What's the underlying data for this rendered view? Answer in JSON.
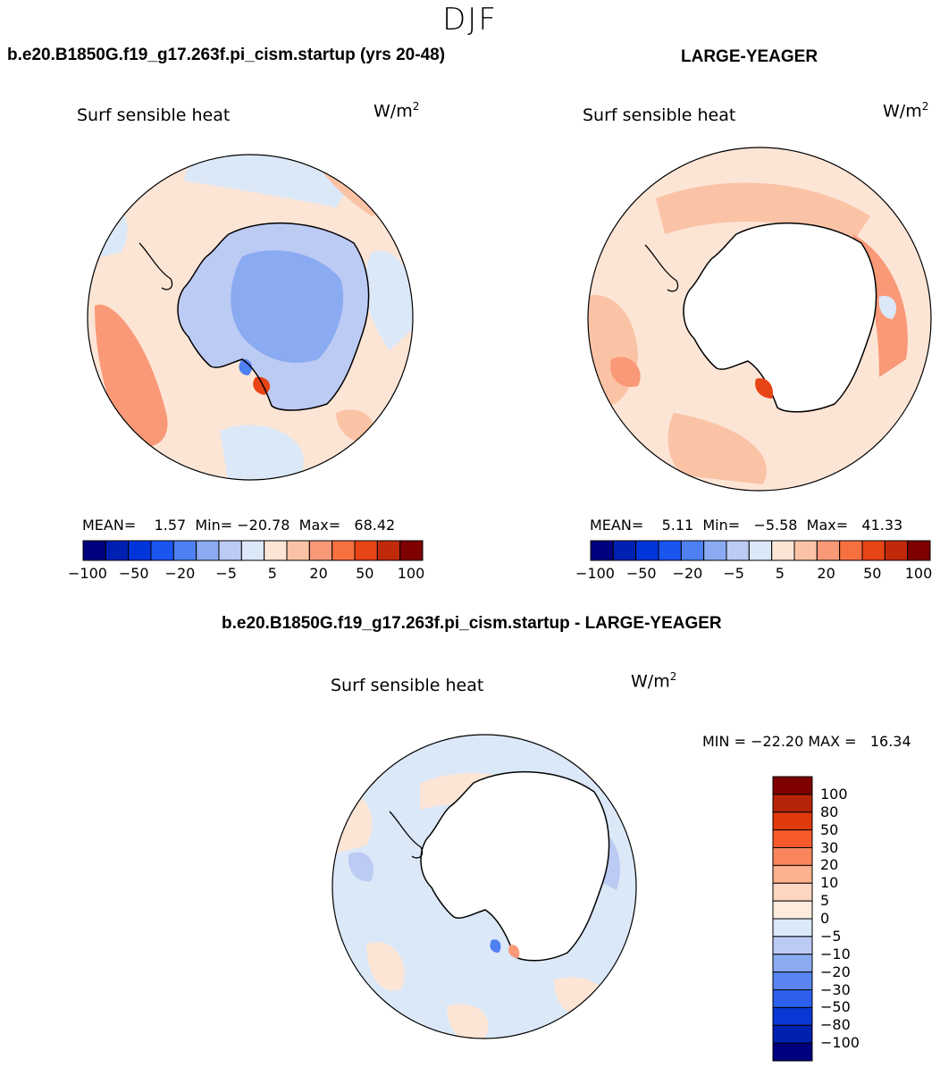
{
  "figure": {
    "season": "DJF",
    "panels": [
      {
        "title": "b.e20.B1850G.f19_g17.263f.pi_cism.startup (yrs 20-48)",
        "variable": "Surf sensible heat",
        "units": "W/m",
        "units_sup": "2",
        "stats": {
          "mean_label": "MEAN=",
          "mean": "1.57",
          "min_label": "Min=",
          "min": "−20.78",
          "max_label": "Max=",
          "max": "68.42"
        },
        "colorbar_ticks": [
          "−100",
          "−50",
          "−20",
          "−5",
          "5",
          "20",
          "50",
          "100"
        ]
      },
      {
        "title": "LARGE-YEAGER",
        "variable": "Surf sensible heat",
        "units": "W/m",
        "units_sup": "2",
        "stats": {
          "mean_label": "MEAN=",
          "mean": "5.11",
          "min_label": "Min=",
          "min": "−5.58",
          "max_label": "Max=",
          "max": "41.33"
        },
        "colorbar_ticks": [
          "−100",
          "−50",
          "−20",
          "−5",
          "5",
          "20",
          "50",
          "100"
        ]
      },
      {
        "title": "b.e20.B1850G.f19_g17.263f.pi_cism.startup - LARGE-YEAGER",
        "variable": "Surf sensible heat",
        "units": "W/m",
        "units_sup": "2",
        "stats_text": "MIN = −22.20 MAX =   16.34",
        "colorbar_levels": [
          "100",
          "80",
          "50",
          "30",
          "20",
          "10",
          "5",
          "0",
          "−5",
          "−10",
          "−20",
          "−30",
          "−50",
          "−80",
          "−100"
        ]
      }
    ],
    "colors": {
      "abs_scale": [
        "#00007f",
        "#0020b4",
        "#0035dc",
        "#1a55f0",
        "#4e80f2",
        "#8aaaf2",
        "#bccbf4",
        "#dbe8f8",
        "#fde5d6",
        "#fbc3a6",
        "#f99977",
        "#f7703f",
        "#e84516",
        "#c02a0a",
        "#7f0000"
      ],
      "diff_scale": [
        "#7f0000",
        "#b52408",
        "#e03a0c",
        "#f75a2a",
        "#f9855d",
        "#fbb08e",
        "#fdd6c2",
        "#fdebdd",
        "#dbe8f8",
        "#bccbf4",
        "#8aaaf2",
        "#5a84f0",
        "#2c60ec",
        "#0838d6",
        "#0020b0",
        "#00007f"
      ]
    }
  }
}
